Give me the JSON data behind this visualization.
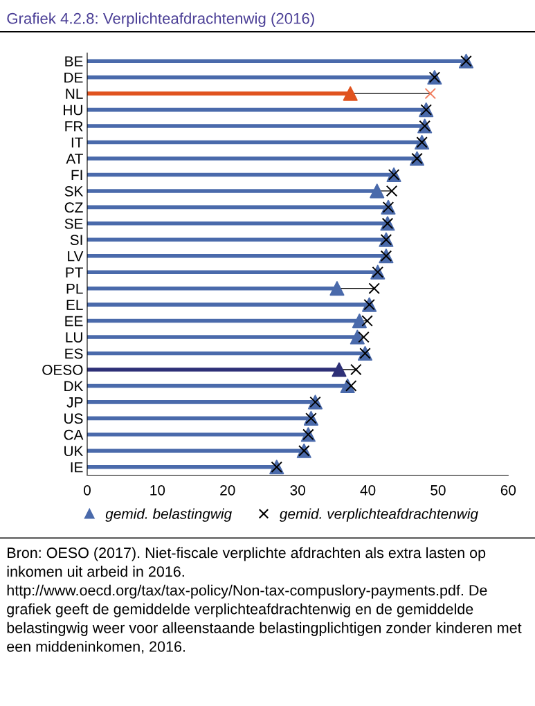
{
  "chart_data": {
    "type": "lollipop",
    "orientation": "horizontal",
    "title": "Grafiek 4.2.8: Verplichteafdrachtenwig (2016)",
    "categories": [
      "BE",
      "DE",
      "NL",
      "HU",
      "FR",
      "IT",
      "AT",
      "FI",
      "SK",
      "CZ",
      "SE",
      "SI",
      "LV",
      "PT",
      "PL",
      "EL",
      "EE",
      "LU",
      "ES",
      "OESO",
      "DK",
      "JP",
      "US",
      "CA",
      "UK",
      "IE"
    ],
    "series": [
      {
        "name": "gemid. belastingwig",
        "marker": "triangle",
        "color": "#4a6aab",
        "colors": [
          "#4a6aab",
          "#4a6aab",
          "#e0531f",
          "#4a6aab",
          "#4a6aab",
          "#4a6aab",
          "#4a6aab",
          "#4a6aab",
          "#4a6aab",
          "#4a6aab",
          "#4a6aab",
          "#4a6aab",
          "#4a6aab",
          "#4a6aab",
          "#4a6aab",
          "#4a6aab",
          "#4a6aab",
          "#4a6aab",
          "#4a6aab",
          "#2e3077",
          "#4a6aab",
          "#4a6aab",
          "#4a6aab",
          "#4a6aab",
          "#4a6aab",
          "#4a6aab"
        ],
        "values": [
          54.0,
          49.5,
          37.5,
          48.3,
          48.1,
          47.7,
          47.0,
          43.7,
          41.3,
          42.9,
          42.8,
          42.6,
          42.6,
          41.4,
          35.6,
          40.2,
          38.8,
          38.5,
          39.6,
          35.9,
          37.1,
          32.5,
          31.9,
          31.5,
          30.9,
          27.0
        ]
      },
      {
        "name": "gemid. verplichteafdrachtenwig",
        "type": "scatter",
        "marker": "cross",
        "color": "#000000",
        "colors": [
          "#000000",
          "#000000",
          "#f07a5a",
          "#000000",
          "#000000",
          "#000000",
          "#000000",
          "#000000",
          "#000000",
          "#000000",
          "#000000",
          "#000000",
          "#000000",
          "#000000",
          "#000000",
          "#000000",
          "#000000",
          "#000000",
          "#000000",
          "#000000",
          "#000000",
          "#000000",
          "#000000",
          "#000000",
          "#000000",
          "#000000"
        ],
        "values": [
          54.0,
          49.5,
          48.9,
          48.3,
          48.1,
          47.7,
          47.0,
          43.7,
          43.4,
          42.9,
          42.8,
          42.6,
          42.6,
          41.4,
          40.9,
          40.2,
          39.9,
          39.4,
          39.6,
          38.3,
          37.6,
          32.5,
          31.9,
          31.5,
          30.9,
          27.0
        ]
      }
    ],
    "xlim": [
      0,
      60
    ],
    "xticks": [
      0,
      10,
      20,
      30,
      40,
      50,
      60
    ],
    "grid": false,
    "legend": "bottom",
    "annotations": [
      "Bron: OESO (2017). Niet-fiscale verplichte afdrachten als extra lasten op inkomen uit arbeid in 2016. http://www.oecd.org/tax/tax-policy/Non-tax-compuslory-payments.pdf. De grafiek geeft de gemiddelde verplichteafdrachtenwig en de gemiddelde belastingwig weer voor alleenstaande belastingplichtigen zonder kinderen met een middeninkomen, 2016."
    ]
  }
}
